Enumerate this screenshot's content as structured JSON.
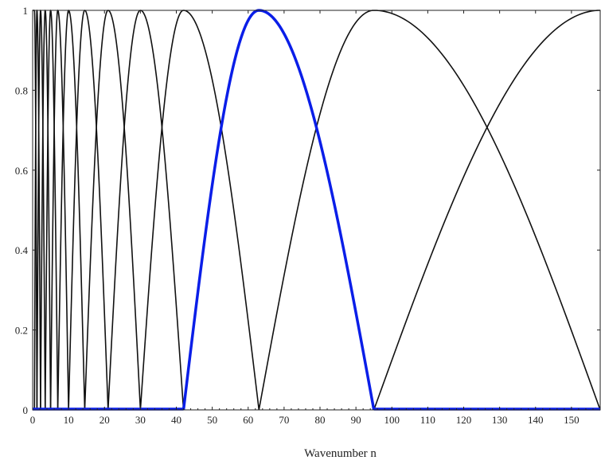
{
  "chart_data": {
    "type": "line",
    "title": "",
    "xlabel": "Wavenumber n",
    "ylabel": "",
    "xlim": [
      0,
      158
    ],
    "ylim": [
      0,
      1
    ],
    "x_ticks": [
      0,
      10,
      20,
      30,
      40,
      50,
      60,
      70,
      80,
      90,
      100,
      110,
      120,
      130,
      140,
      150
    ],
    "y_ticks": [
      0,
      0.2,
      0.4,
      0.6,
      0.8,
      1
    ],
    "x_tick_labels": [
      "0",
      "10",
      "20",
      "30",
      "40",
      "50",
      "60",
      "70",
      "80",
      "90",
      "100",
      "110",
      "120",
      "130",
      "140",
      "150"
    ],
    "y_tick_labels": [
      "0",
      "0.2",
      "0.4",
      "0.6",
      "0.8",
      "1"
    ],
    "grid": false,
    "legend": "none",
    "filter_centers": [
      0.5,
      1.2,
      2.2,
      3.5,
      5,
      7,
      10,
      14.5,
      21,
      30,
      42,
      63,
      95,
      158
    ],
    "highlighted_filter_index": 11,
    "colors": {
      "normal": "#111111",
      "highlight": "#0a1ee8"
    }
  }
}
